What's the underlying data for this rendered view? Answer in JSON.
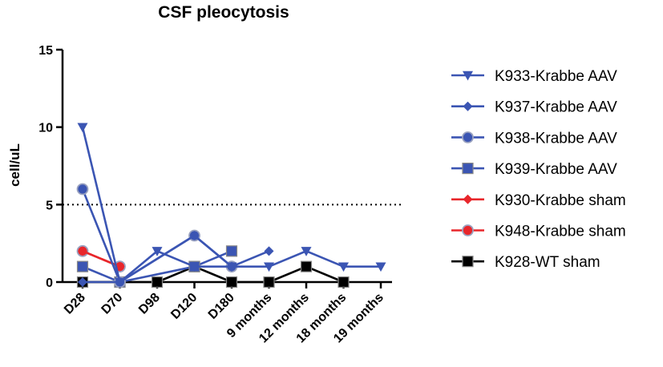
{
  "chart_data": {
    "type": "line",
    "title": "CSF pleocytosis",
    "xlabel": "",
    "ylabel": "cell/uL",
    "categories": [
      "D28",
      "D70",
      "D98",
      "D120",
      "D180",
      "9 months",
      "12 months",
      "18 months",
      "19 months"
    ],
    "ylim": [
      0,
      15
    ],
    "yticks": [
      0,
      5,
      10,
      15
    ],
    "threshold": 5,
    "legend_position": "right",
    "series": [
      {
        "name": "K933-Krabbe AAV",
        "color": "#3b55b3",
        "marker": "triangle-down",
        "values": [
          10,
          0,
          2,
          1,
          1,
          1,
          2,
          1,
          1
        ]
      },
      {
        "name": "K937-Krabbe AAV",
        "color": "#3b55b3",
        "marker": "diamond",
        "values": [
          0,
          0,
          null,
          3,
          1,
          2,
          null,
          null,
          null
        ]
      },
      {
        "name": "K938-Krabbe AAV",
        "color": "#3b55b3",
        "marker": "circle",
        "values": [
          6,
          0,
          null,
          3,
          1,
          null,
          null,
          null,
          null
        ]
      },
      {
        "name": "K939-Krabbe AAV",
        "color": "#3b55b3",
        "marker": "square",
        "values": [
          1,
          0,
          null,
          1,
          2,
          null,
          null,
          null,
          null
        ]
      },
      {
        "name": "K930-Krabbe sham",
        "color": "#e8262b",
        "marker": "diamond",
        "values": [
          2,
          1,
          null,
          null,
          null,
          null,
          null,
          null,
          null
        ]
      },
      {
        "name": "K948-Krabbe sham",
        "color": "#e8262b",
        "marker": "circle",
        "values": [
          2,
          1,
          null,
          null,
          null,
          null,
          null,
          null,
          null
        ]
      },
      {
        "name": "K928-WT sham",
        "color": "#000000",
        "marker": "square",
        "values": [
          0,
          0,
          0,
          1,
          0,
          0,
          1,
          0,
          null
        ]
      }
    ]
  }
}
